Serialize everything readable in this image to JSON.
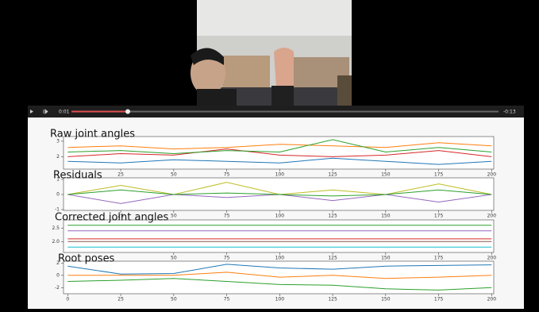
{
  "player": {
    "elapsed": "0:01",
    "remaining": "-0:13"
  },
  "chart_data": [
    {
      "type": "line",
      "title": "Raw joint angles",
      "x": [
        0,
        25,
        50,
        75,
        100,
        125,
        150,
        175,
        200
      ],
      "xlim": [
        -2,
        201
      ],
      "xticks": [
        25,
        50,
        75,
        100,
        125,
        150,
        175,
        200
      ],
      "ylim": [
        1.2,
        3.3
      ],
      "yticks": [
        2,
        3
      ],
      "series": [
        {
          "color": "#ff7f0e",
          "values": [
            2.6,
            2.7,
            2.5,
            2.6,
            2.8,
            2.7,
            2.6,
            2.9,
            2.7
          ]
        },
        {
          "color": "#d62728",
          "values": [
            2.0,
            2.2,
            2.1,
            2.5,
            2.1,
            2.0,
            2.1,
            2.4,
            2.0
          ]
        },
        {
          "color": "#1f77b4",
          "values": [
            1.7,
            1.6,
            1.8,
            1.7,
            1.6,
            1.9,
            1.7,
            1.5,
            1.7
          ]
        },
        {
          "color": "#2ca02c",
          "values": [
            2.3,
            2.4,
            2.2,
            2.4,
            2.3,
            3.1,
            2.3,
            2.6,
            2.3
          ]
        }
      ]
    },
    {
      "type": "line",
      "title": "Residuals",
      "x": [
        0,
        25,
        50,
        75,
        100,
        125,
        150,
        175,
        200
      ],
      "xlim": [
        -2,
        201
      ],
      "xticks": [
        25,
        50,
        75,
        100,
        125,
        150,
        175,
        200
      ],
      "ylim": [
        -1.05,
        1.1
      ],
      "yticks": [
        1,
        0,
        -1
      ],
      "series": [
        {
          "color": "#bcbd22",
          "values": [
            0,
            0.6,
            0,
            0.8,
            0,
            0.3,
            0,
            0.7,
            0
          ]
        },
        {
          "color": "#9467bd",
          "values": [
            0,
            -0.6,
            0,
            -0.2,
            0,
            -0.4,
            0,
            -0.5,
            0
          ]
        },
        {
          "color": "#2ca02c",
          "values": [
            0,
            0.3,
            0,
            0.1,
            0,
            -0.1,
            0,
            0.3,
            0
          ]
        }
      ]
    },
    {
      "type": "line",
      "title": "Corrected joint angles",
      "x": [
        0,
        25,
        50,
        75,
        100,
        125,
        150,
        175,
        200
      ],
      "xlim": [
        -2,
        201
      ],
      "xticks": [
        50,
        75,
        100,
        125,
        150,
        175,
        200
      ],
      "ylim": [
        1.6,
        2.8
      ],
      "yticks": [
        2.5,
        {
          "value": 2,
          "label": "2.0"
        }
      ],
      "series": [
        {
          "color": "#2ca02c",
          "values": [
            2.6,
            2.6,
            2.6,
            2.6,
            2.6,
            2.6,
            2.6,
            2.6,
            2.6
          ]
        },
        {
          "color": "#9467bd",
          "values": [
            2.4,
            2.4,
            2.4,
            2.4,
            2.4,
            2.4,
            2.4,
            2.4,
            2.4
          ]
        },
        {
          "color": "#d62728",
          "values": [
            2.1,
            2.1,
            2.1,
            2.1,
            2.1,
            2.1,
            2.1,
            2.1,
            2.1
          ]
        },
        {
          "color": "#8c564b",
          "values": [
            2.0,
            2.0,
            2.0,
            2.0,
            2.0,
            2.0,
            2.0,
            2.0,
            2.0
          ]
        },
        {
          "color": "#17becf",
          "values": [
            1.8,
            1.8,
            1.8,
            1.8,
            1.8,
            1.8,
            1.8,
            1.8,
            1.8
          ]
        }
      ]
    },
    {
      "type": "line",
      "title": "Root poses",
      "x": [
        0,
        25,
        50,
        75,
        100,
        125,
        150,
        175,
        200
      ],
      "xlim": [
        -2,
        201
      ],
      "xticks": [
        0,
        25,
        50,
        75,
        100,
        125,
        150,
        175,
        200
      ],
      "ylim": [
        -3,
        2.3
      ],
      "yticks": [
        2,
        0,
        -2
      ],
      "series": [
        {
          "color": "#1f77b4",
          "values": [
            1.5,
            0.2,
            0.3,
            1.8,
            1.2,
            1.0,
            1.5,
            1.6,
            1.7
          ]
        },
        {
          "color": "#ff7f0e",
          "values": [
            0,
            0,
            0,
            0.5,
            -0.3,
            0,
            -0.5,
            -0.3,
            0
          ]
        },
        {
          "color": "#2ca02c",
          "values": [
            -1,
            -0.8,
            -0.5,
            -1,
            -1.5,
            -1.6,
            -2.2,
            -2.4,
            -2
          ]
        }
      ]
    }
  ]
}
